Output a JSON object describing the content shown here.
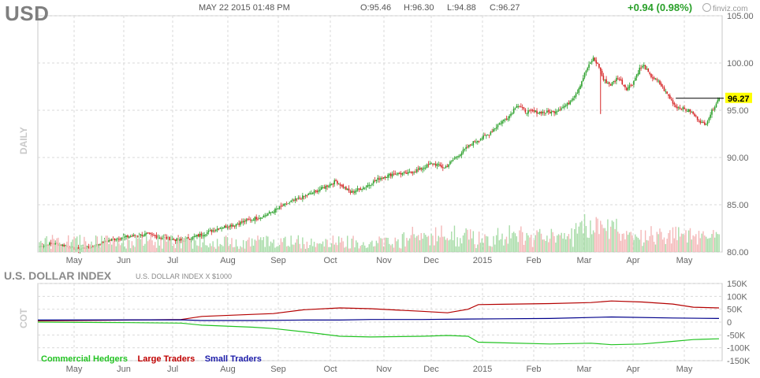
{
  "header": {
    "ticker": "USD",
    "datetime": "MAY 22 2015 01:48 PM",
    "open": "O:95.46",
    "high": "H:96.30",
    "low": "L:94.88",
    "close": "C:96.27",
    "change": "+0.94 (0.98%)",
    "brand": "finviz.com"
  },
  "labels": {
    "daily": "DAILY",
    "cot": "COT",
    "index_title": "U.S. DOLLAR INDEX",
    "index_sub": "U.S. DOLLAR INDEX X $1000",
    "price_tag": "96.27"
  },
  "colors": {
    "up": "#2ca02c",
    "down": "#d62728",
    "vol_up": "#a8dca8",
    "vol_down": "#f4b8b8",
    "commercial": "#22c322",
    "large": "#b40000",
    "small": "#00008b",
    "price_tag_bg": "#ffff00",
    "grid": "#d9d9d9"
  },
  "chart_data": [
    {
      "type": "candlestick",
      "title": "USD",
      "ylabel": "DAILY",
      "ylim": [
        80,
        105
      ],
      "y_ticks": [
        "105.00",
        "100.00",
        "95.00",
        "90.00",
        "85.00",
        "80.00"
      ],
      "x_ticks": [
        "May",
        "Jun",
        "Jul",
        "Aug",
        "Sep",
        "Oct",
        "Nov",
        "Dec",
        "2015",
        "Feb",
        "Mar",
        "Apr",
        "May"
      ],
      "last": 96.27,
      "close_path": [
        [
          0,
          80.6
        ],
        [
          8,
          80.9
        ],
        [
          18,
          80.7
        ],
        [
          25,
          80.3
        ],
        [
          35,
          80.5
        ],
        [
          45,
          81.1
        ],
        [
          55,
          81.5
        ],
        [
          65,
          81.7
        ],
        [
          75,
          81.9
        ],
        [
          82,
          81.6
        ],
        [
          90,
          81.4
        ],
        [
          98,
          81.2
        ],
        [
          105,
          81.5
        ],
        [
          115,
          82.0
        ],
        [
          125,
          82.6
        ],
        [
          135,
          82.9
        ],
        [
          145,
          83.4
        ],
        [
          155,
          83.8
        ],
        [
          165,
          84.6
        ],
        [
          175,
          85.4
        ],
        [
          185,
          86.0
        ],
        [
          195,
          86.7
        ],
        [
          205,
          87.5
        ],
        [
          210,
          86.9
        ],
        [
          215,
          86.3
        ],
        [
          225,
          86.9
        ],
        [
          235,
          87.8
        ],
        [
          245,
          88.3
        ],
        [
          255,
          88.3
        ],
        [
          265,
          88.9
        ],
        [
          272,
          89.4
        ],
        [
          280,
          88.9
        ],
        [
          290,
          90.3
        ],
        [
          300,
          91.6
        ],
        [
          310,
          92.4
        ],
        [
          318,
          93.6
        ],
        [
          325,
          94.4
        ],
        [
          330,
          95.6
        ],
        [
          336,
          94.9
        ],
        [
          345,
          94.8
        ],
        [
          355,
          94.8
        ],
        [
          365,
          95.6
        ],
        [
          372,
          97.0
        ],
        [
          378,
          99.2
        ],
        [
          383,
          100.5
        ],
        [
          387,
          99.6
        ],
        [
          390,
          98.2
        ],
        [
          395,
          97.7
        ],
        [
          400,
          98.5
        ],
        [
          406,
          97.3
        ],
        [
          410,
          97.8
        ],
        [
          415,
          99.4
        ],
        [
          418,
          99.7
        ],
        [
          422,
          98.7
        ],
        [
          428,
          98.0
        ],
        [
          435,
          96.5
        ],
        [
          440,
          95.4
        ],
        [
          450,
          94.9
        ],
        [
          455,
          94.1
        ],
        [
          460,
          93.4
        ],
        [
          464,
          94.6
        ],
        [
          468,
          95.8
        ],
        [
          470,
          96.27
        ]
      ],
      "volume_note": "daily volume bars, scale not labeled"
    },
    {
      "type": "line",
      "title": "U.S. DOLLAR INDEX",
      "subtitle": "U.S. DOLLAR INDEX X $1000",
      "ylabel": "COT",
      "ylim": [
        -150000,
        150000
      ],
      "y_ticks": [
        "150K",
        "100K",
        "50K",
        "0",
        "-50K",
        "-100K",
        "-150K"
      ],
      "x_ticks": [
        "May",
        "Jun",
        "Jul",
        "Aug",
        "Sep",
        "Oct",
        "Nov",
        "Dec",
        "2015",
        "Feb",
        "Mar",
        "Apr",
        "May"
      ],
      "series": [
        {
          "name": "Commercial Hedgers",
          "points": [
            [
              0,
              0
            ],
            [
              18,
              -2000
            ],
            [
              28,
              -4000
            ],
            [
              32,
              -12000
            ],
            [
              42,
              -20000
            ],
            [
              46,
              -25000
            ],
            [
              52,
              -38000
            ],
            [
              59,
              -55000
            ],
            [
              65,
              -58000
            ],
            [
              75,
              -55000
            ],
            [
              80,
              -52000
            ],
            [
              84,
              -55000
            ],
            [
              86,
              -78000
            ],
            [
              100,
              -85000
            ],
            [
              108,
              -82000
            ],
            [
              112,
              -88000
            ],
            [
              118,
              -85000
            ],
            [
              124,
              -75000
            ],
            [
              128,
              -68000
            ],
            [
              133,
              -65000
            ]
          ]
        },
        {
          "name": "Large Traders",
          "points": [
            [
              0,
              5000
            ],
            [
              18,
              8000
            ],
            [
              28,
              10000
            ],
            [
              32,
              22000
            ],
            [
              42,
              30000
            ],
            [
              46,
              33000
            ],
            [
              52,
              48000
            ],
            [
              59,
              55000
            ],
            [
              65,
              52000
            ],
            [
              75,
              42000
            ],
            [
              80,
              36000
            ],
            [
              84,
              50000
            ],
            [
              86,
              68000
            ],
            [
              100,
              72000
            ],
            [
              108,
              76000
            ],
            [
              112,
              82000
            ],
            [
              118,
              78000
            ],
            [
              124,
              70000
            ],
            [
              128,
              58000
            ],
            [
              133,
              55000
            ]
          ]
        },
        {
          "name": "Small Traders",
          "points": [
            [
              0,
              8000
            ],
            [
              28,
              9000
            ],
            [
              32,
              6000
            ],
            [
              42,
              6000
            ],
            [
              52,
              8000
            ],
            [
              59,
              8000
            ],
            [
              65,
              10000
            ],
            [
              75,
              10000
            ],
            [
              84,
              12000
            ],
            [
              100,
              14000
            ],
            [
              112,
              20000
            ],
            [
              124,
              16000
            ],
            [
              133,
              14000
            ]
          ]
        }
      ]
    }
  ]
}
